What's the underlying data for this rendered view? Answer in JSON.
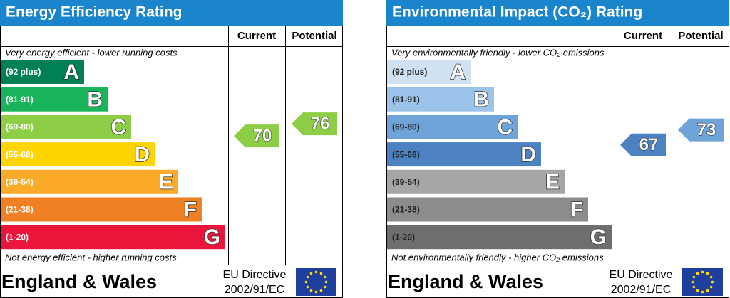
{
  "chart_data": [
    {
      "type": "epc",
      "title": "Energy Efficiency Rating",
      "columns": [
        "Current",
        "Potential"
      ],
      "top_note": "Very energy efficient - lower running costs",
      "bottom_note": "Not energy efficient - higher running costs",
      "label_color": "#ffffff",
      "bands": [
        {
          "range": "(92 plus)",
          "letter": "A",
          "color": "#008054"
        },
        {
          "range": "(81-91)",
          "letter": "B",
          "color": "#19b459"
        },
        {
          "range": "(69-80)",
          "letter": "C",
          "color": "#8dce46"
        },
        {
          "range": "(55-68)",
          "letter": "D",
          "color": "#ffd500"
        },
        {
          "range": "(39-54)",
          "letter": "E",
          "color": "#fcaa2a"
        },
        {
          "range": "(21-38)",
          "letter": "F",
          "color": "#ef8023"
        },
        {
          "range": "(1-20)",
          "letter": "G",
          "color": "#e9153b"
        }
      ],
      "current": 70,
      "potential": 76,
      "region": "England & Wales",
      "directive": [
        "EU Directive",
        "2002/91/EC"
      ]
    },
    {
      "type": "epc",
      "title": "Environmental Impact (CO₂) Rating",
      "columns": [
        "Current",
        "Potential"
      ],
      "top_note": "Very environmentally friendly - lower CO₂ emissions",
      "bottom_note": "Not environmentally friendly - higher CO₂ emissions",
      "label_color": "#222222",
      "bands": [
        {
          "range": "(92 plus)",
          "letter": "A",
          "color": "#cfe2f3"
        },
        {
          "range": "(81-91)",
          "letter": "B",
          "color": "#9cc3ea"
        },
        {
          "range": "(69-80)",
          "letter": "C",
          "color": "#6fa4d8"
        },
        {
          "range": "(55-68)",
          "letter": "D",
          "color": "#4d82c2"
        },
        {
          "range": "(39-54)",
          "letter": "E",
          "color": "#a6a6a6"
        },
        {
          "range": "(21-38)",
          "letter": "F",
          "color": "#8c8c8c"
        },
        {
          "range": "(1-20)",
          "letter": "G",
          "color": "#6e6e6e"
        }
      ],
      "current": 67,
      "potential": 73,
      "region": "England & Wales",
      "directive": [
        "EU Directive",
        "2002/91/EC"
      ]
    }
  ]
}
